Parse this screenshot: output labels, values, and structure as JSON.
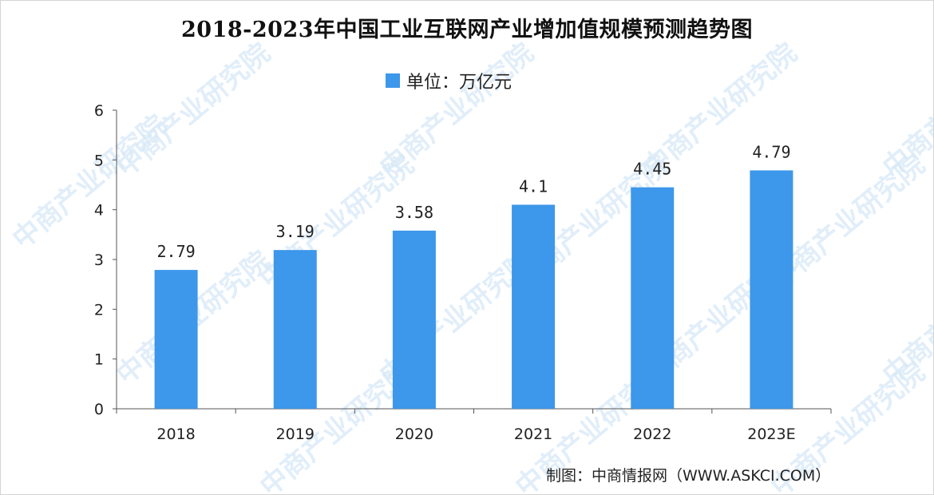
{
  "title": "2018-2023年中国工业互联网产业增加值规模预测趋势图",
  "legend_label": "单位：万亿元",
  "credit": "制图：中商情报网（WWW.ASKCI.COM）",
  "watermark": "中商产业研究院",
  "colors": {
    "bar": "#3d97ea",
    "axis": "#555555",
    "watermark": "#d7e9f7"
  },
  "chart_data": {
    "type": "bar",
    "categories": [
      "2018",
      "2019",
      "2020",
      "2021",
      "2022",
      "2023E"
    ],
    "values": [
      2.79,
      3.19,
      3.58,
      4.1,
      4.45,
      4.79
    ],
    "data_labels": [
      "2.79",
      "3.19",
      "3.58",
      "4.1",
      "4.45",
      "4.79"
    ],
    "series": [
      {
        "name": "单位：万亿元",
        "values": [
          2.79,
          3.19,
          3.58,
          4.1,
          4.45,
          4.79
        ]
      }
    ],
    "yticks": [
      "0",
      "1",
      "2",
      "3",
      "4",
      "5",
      "6"
    ],
    "ylim": [
      0,
      6
    ],
    "grid": false,
    "legend_position": "top-center",
    "title": "2018-2023年中国工业互联网产业增加值规模预测趋势图",
    "xlabel": "",
    "ylabel": ""
  }
}
